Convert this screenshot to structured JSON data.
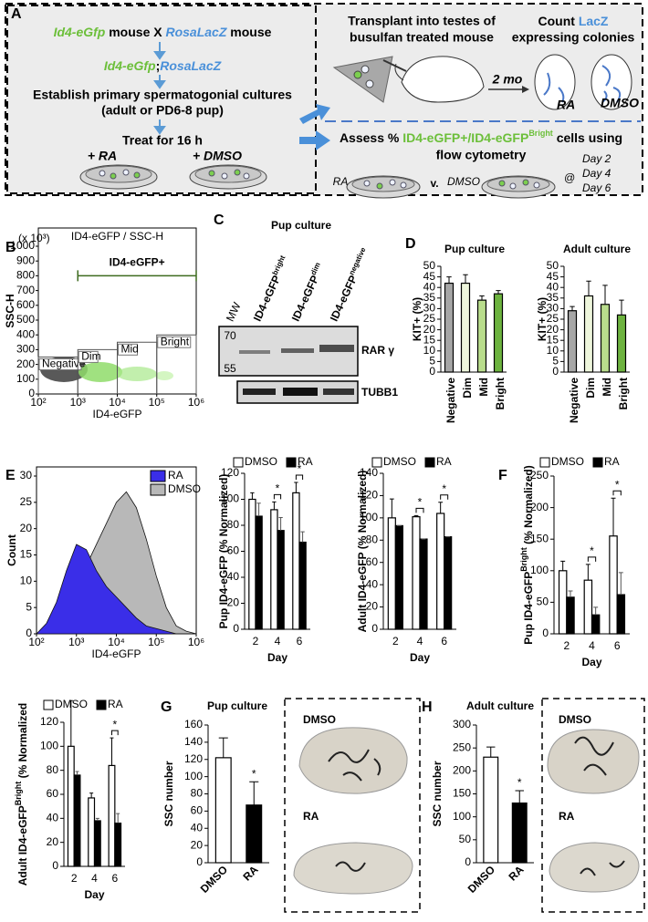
{
  "figure": {
    "panel_letters": [
      "A",
      "B",
      "C",
      "D",
      "E",
      "F",
      "G",
      "H"
    ],
    "a": {
      "cross_line": [
        "Id4-eGfp",
        " mouse X ",
        "RosaLacZ",
        " mouse"
      ],
      "cross_result": [
        "Id4-eGfp",
        ";",
        "RosaLacZ"
      ],
      "establish": [
        "Establish primary spermatogonial cultures",
        "(adult or PD6-8 pup)"
      ],
      "treat": "Treat for 16 h",
      "treat_ra": "+ RA",
      "treat_dmso": "+ DMSO",
      "transplant": [
        "Transplant into testes of",
        "busulfan treated mouse"
      ],
      "count": [
        "Count ",
        "LacZ",
        "expressing colonies"
      ],
      "interval": "2 mo",
      "testis_ra": "RA",
      "testis_dmso": "DMSO",
      "assess": [
        "Assess % ",
        "ID4-eGFP+/ID4-eGFP",
        "Bright",
        " cells using",
        "flow cytometry"
      ],
      "compare": [
        "RA",
        "v.",
        "DMSO",
        "@"
      ],
      "days": [
        "Day 2",
        "Day 4",
        "Day 6"
      ]
    },
    "c": {
      "title": "Pup culture",
      "lanes": [
        [
          "MW"
        ],
        [
          "ID4-eGFP",
          "bright"
        ],
        [
          "ID4-eGFP",
          "dim"
        ],
        [
          "ID4-eGFP",
          "negative"
        ]
      ],
      "mw": [
        "70",
        "55"
      ],
      "proteins": [
        "RAR γ",
        "TUBB1"
      ]
    },
    "g": {
      "photo_labels": [
        "DMSO",
        "RA"
      ]
    },
    "h": {
      "photo_labels": [
        "DMSO",
        "RA"
      ]
    }
  },
  "chart_data": [
    {
      "type": "scatter",
      "title": "ID4-eGFP / SSC-H",
      "xlabel": "ID4-eGFP",
      "ylabel": "SSC-H",
      "unit_note": "(x 10³)",
      "xlog": true,
      "xlim": [
        100,
        1000000
      ],
      "xticks": [
        {
          "value": 100,
          "label": "10²"
        },
        {
          "value": 1000,
          "label": "10³"
        },
        {
          "value": 10000,
          "label": "10⁴"
        },
        {
          "value": 100000,
          "label": "10⁵"
        },
        {
          "value": 1000000,
          "label": "10⁶"
        }
      ],
      "ylim": [
        0,
        1000
      ],
      "yticks": [
        0,
        100,
        200,
        300,
        400,
        500,
        600,
        700,
        800,
        900,
        1000
      ],
      "gates": [
        {
          "label": "Negative",
          "x": [
            100,
            1000
          ],
          "ytop": 250
        },
        {
          "label": "Dim",
          "x": [
            1000,
            10000
          ],
          "ytop": 300
        },
        {
          "label": "Mid",
          "x": [
            10000,
            100000
          ],
          "ytop": 350
        },
        {
          "label": "Bright",
          "x": [
            100000,
            1000000
          ],
          "ytop": 400
        }
      ],
      "positive_gate": {
        "label": "ID4-eGFP+",
        "x": [
          1000,
          1000000
        ],
        "y": 800
      }
    },
    {
      "type": "bar",
      "title": "Pup culture",
      "ylabel": [
        "KIT+ (%)"
      ],
      "categories": [
        "Negative",
        "Dim",
        "Mid",
        "Bright"
      ],
      "values": [
        42,
        42,
        34,
        37
      ],
      "errors": [
        3,
        4,
        2,
        1.5
      ],
      "colors": [
        "#a6a6a6",
        "#eef6dc",
        "#b9dd8c",
        "#6db33f"
      ],
      "ylim": [
        0,
        50
      ],
      "yticks": [
        0,
        5,
        10,
        15,
        20,
        25,
        30,
        35,
        40,
        45,
        50
      ],
      "label_rotation": -90
    },
    {
      "type": "bar",
      "title": "Adult culture",
      "ylabel": [
        "KIT+ (%)"
      ],
      "categories": [
        "Negative",
        "Dim",
        "Mid",
        "Bright"
      ],
      "values": [
        29,
        36,
        32,
        27
      ],
      "errors": [
        2,
        7,
        9,
        7
      ],
      "colors": [
        "#a6a6a6",
        "#eef6dc",
        "#b9dd8c",
        "#6db33f"
      ],
      "ylim": [
        0,
        50
      ],
      "yticks": [
        0,
        5,
        10,
        15,
        20,
        25,
        30,
        35,
        40,
        45,
        50
      ],
      "label_rotation": -90
    },
    {
      "type": "area",
      "xlabel": "ID4-eGFP",
      "ylabel": "Count",
      "xlog": true,
      "xlim": [
        100,
        1000000
      ],
      "xticks": [
        {
          "value": 100,
          "label": "10²"
        },
        {
          "value": 1000,
          "label": "10³"
        },
        {
          "value": 10000,
          "label": "10⁴"
        },
        {
          "value": 100000,
          "label": "10⁵"
        },
        {
          "value": 1000000,
          "label": "10⁶"
        }
      ],
      "ylim": [
        0,
        30
      ],
      "yticks": [
        0,
        5,
        10,
        15,
        20,
        25,
        30
      ],
      "x": [
        100,
        178,
        316,
        562,
        1000,
        1778,
        3162,
        5623,
        10000,
        17783,
        31623,
        56234,
        100000,
        177828,
        316228,
        562341,
        1000000
      ],
      "series": [
        {
          "name": "RA",
          "color": "#3a2ee8",
          "values": [
            0,
            2,
            6,
            12,
            17,
            16,
            12,
            9,
            7,
            5,
            3,
            1.5,
            1,
            0.5,
            0,
            0,
            0
          ]
        },
        {
          "name": "DMSO",
          "color": "#b8b8b8",
          "values": [
            0,
            0.5,
            2,
            5,
            9,
            13,
            17,
            21,
            25,
            27,
            24,
            18,
            11,
            5,
            1.5,
            0.5,
            0
          ]
        }
      ]
    },
    {
      "type": "bar",
      "ylabel": [
        "Pup ID4-eGFP (% Normalized)"
      ],
      "xlabel": "Day",
      "categories": [
        "2",
        "4",
        "6"
      ],
      "series": [
        {
          "name": "DMSO",
          "color": "#ffffff",
          "values": [
            100,
            92,
            105
          ],
          "errors": [
            5,
            6,
            8
          ]
        },
        {
          "name": "RA",
          "color": "#000000",
          "values": [
            87,
            76,
            67
          ],
          "errors": [
            10,
            10,
            8
          ]
        }
      ],
      "ylim": [
        0,
        120
      ],
      "yticks": [
        0,
        20,
        40,
        60,
        80,
        100,
        120
      ],
      "significance": [
        null,
        "*",
        "*"
      ]
    },
    {
      "type": "bar",
      "ylabel": [
        "Adult ID4-eGFP (% Normalized)"
      ],
      "xlabel": "Day",
      "categories": [
        "2",
        "4",
        "6"
      ],
      "series": [
        {
          "name": "DMSO",
          "color": "#ffffff",
          "values": [
            100,
            101,
            104
          ],
          "errors": [
            17,
            1,
            10
          ]
        },
        {
          "name": "RA",
          "color": "#000000",
          "values": [
            93,
            81,
            83
          ],
          "errors": [
            0,
            0,
            0
          ]
        }
      ],
      "ylim": [
        0,
        140
      ],
      "yticks": [
        0,
        20,
        40,
        60,
        80,
        100,
        120,
        140
      ],
      "significance": [
        null,
        "*",
        "*"
      ]
    },
    {
      "type": "bar",
      "ylabel": [
        "Pup ID4-eGFP",
        "Bright",
        " (% Normalized)"
      ],
      "xlabel": "Day",
      "categories": [
        "2",
        "4",
        "6"
      ],
      "series": [
        {
          "name": "DMSO",
          "color": "#ffffff",
          "values": [
            100,
            85,
            155
          ],
          "errors": [
            15,
            25,
            60
          ]
        },
        {
          "name": "RA",
          "color": "#000000",
          "values": [
            58,
            30,
            62
          ],
          "errors": [
            10,
            12,
            35
          ]
        }
      ],
      "ylim": [
        0,
        250
      ],
      "yticks": [
        0,
        50,
        100,
        150,
        200,
        250
      ],
      "significance": [
        null,
        "*",
        "*"
      ]
    },
    {
      "type": "bar",
      "ylabel": [
        "Adult ID4-eGFP",
        "Bright",
        " (% Normalized"
      ],
      "xlabel": "Day",
      "categories": [
        "2",
        "4",
        "6"
      ],
      "series": [
        {
          "name": "DMSO",
          "color": "#ffffff",
          "values": [
            100,
            57,
            84
          ],
          "errors": [
            38,
            4,
            23
          ]
        },
        {
          "name": "RA",
          "color": "#000000",
          "values": [
            76,
            38,
            36
          ],
          "errors": [
            3,
            2,
            8
          ]
        }
      ],
      "ylim": [
        0,
        120
      ],
      "yticks": [
        0,
        20,
        40,
        60,
        80,
        100,
        120
      ],
      "significance": [
        null,
        null,
        "*"
      ]
    },
    {
      "type": "bar",
      "title": "Pup culture",
      "ylabel": [
        "SSC number"
      ],
      "categories": [
        "DMSO",
        "RA"
      ],
      "values": [
        122,
        67
      ],
      "errors": [
        23,
        27
      ],
      "colors": [
        "#ffffff",
        "#000000"
      ],
      "ylim": [
        0,
        160
      ],
      "yticks": [
        0,
        20,
        40,
        60,
        80,
        100,
        120,
        140,
        160
      ],
      "label_rotation": -45,
      "significance": [
        null,
        "*"
      ]
    },
    {
      "type": "bar",
      "title": "Adult culture",
      "ylabel": [
        "SSC number"
      ],
      "categories": [
        "DMSO",
        "RA"
      ],
      "values": [
        230,
        130
      ],
      "errors": [
        22,
        27
      ],
      "colors": [
        "#ffffff",
        "#000000"
      ],
      "ylim": [
        0,
        300
      ],
      "yticks": [
        0,
        50,
        100,
        150,
        200,
        250,
        300
      ],
      "label_rotation": -45,
      "significance": [
        null,
        "*"
      ]
    }
  ]
}
